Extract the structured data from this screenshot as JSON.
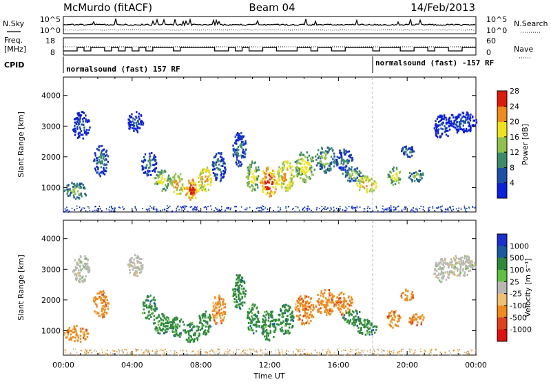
{
  "header": {
    "station": "McMurdo (fitACF)",
    "beam": "Beam 04",
    "date": "14/Feb/2013"
  },
  "summary_panels": {
    "nsky_label": "N.Sky",
    "nsearch_label": "N.Search",
    "noise_ticks": [
      "10^5",
      "10^0"
    ],
    "freq_label": "Freq.",
    "freq_unit": "[MHz]",
    "freq_ticks": [
      "18",
      "8"
    ],
    "nave_label": "Nave",
    "nave_ticks": [
      "60",
      "0"
    ],
    "cpid_label": "CPID",
    "cpid_segments": [
      {
        "text": "normalsound (fast) 157 RF",
        "start_hour": 0
      },
      {
        "text": "normalsound (fast) -157 RF",
        "start_hour": 18
      }
    ]
  },
  "chart_data": [
    {
      "type": "heatmap",
      "name": "power",
      "ylabel": "Slant Range [km]",
      "xlabel": "",
      "xlim": [
        0,
        24
      ],
      "ylim": [
        200,
        4600
      ],
      "yticks": [
        "1000",
        "2000",
        "3000",
        "4000"
      ],
      "colorbar": {
        "label": "Power [dB]",
        "ticks": [
          "4",
          "8",
          "12",
          "16",
          "20",
          "24",
          "28"
        ],
        "colors": [
          "#0a1fe0",
          "#1b4fa8",
          "#3d8a6a",
          "#8fc24a",
          "#f0e21a",
          "#f08a1a",
          "#e01a0a"
        ]
      },
      "regions": [
        {
          "t0": 0.0,
          "t1": 1.4,
          "r0": 650,
          "r1": 1200,
          "level": 3
        },
        {
          "t0": 0.5,
          "t1": 1.5,
          "r0": 2600,
          "r1": 3500,
          "level": 1
        },
        {
          "t0": 1.7,
          "t1": 2.6,
          "r0": 1400,
          "r1": 2400,
          "level": 2
        },
        {
          "t0": 3.7,
          "t1": 4.6,
          "r0": 2800,
          "r1": 3500,
          "level": 1
        },
        {
          "t0": 4.5,
          "t1": 5.4,
          "r0": 1400,
          "r1": 2200,
          "level": 2
        },
        {
          "t0": 5.2,
          "t1": 6.2,
          "r0": 900,
          "r1": 1600,
          "level": 4
        },
        {
          "t0": 6.2,
          "t1": 7.0,
          "r0": 800,
          "r1": 1500,
          "level": 5
        },
        {
          "t0": 7.0,
          "t1": 7.9,
          "r0": 600,
          "r1": 1300,
          "level": 6
        },
        {
          "t0": 7.8,
          "t1": 8.6,
          "r0": 900,
          "r1": 1700,
          "level": 5
        },
        {
          "t0": 8.6,
          "t1": 9.4,
          "r0": 1200,
          "r1": 2200,
          "level": 2
        },
        {
          "t0": 9.8,
          "t1": 10.6,
          "r0": 1700,
          "r1": 2900,
          "level": 2
        },
        {
          "t0": 10.6,
          "t1": 11.4,
          "r0": 900,
          "r1": 1900,
          "level": 4
        },
        {
          "t0": 11.4,
          "t1": 12.4,
          "r0": 700,
          "r1": 1700,
          "level": 6
        },
        {
          "t0": 12.4,
          "t1": 13.4,
          "r0": 900,
          "r1": 1900,
          "level": 5
        },
        {
          "t0": 13.4,
          "t1": 14.6,
          "r0": 1200,
          "r1": 2200,
          "level": 4
        },
        {
          "t0": 14.6,
          "t1": 15.8,
          "r0": 1500,
          "r1": 2400,
          "level": 3
        },
        {
          "t0": 15.8,
          "t1": 16.8,
          "r0": 1500,
          "r1": 2300,
          "level": 2
        },
        {
          "t0": 16.2,
          "t1": 17.4,
          "r0": 1200,
          "r1": 1700,
          "level": 3
        },
        {
          "t0": 17.0,
          "t1": 18.2,
          "r0": 850,
          "r1": 1400,
          "level": 5
        },
        {
          "t0": 18.8,
          "t1": 19.6,
          "r0": 1100,
          "r1": 1700,
          "level": 4
        },
        {
          "t0": 19.6,
          "t1": 20.4,
          "r0": 2000,
          "r1": 2400,
          "level": 2
        },
        {
          "t0": 20.0,
          "t1": 21.0,
          "r0": 1200,
          "r1": 1600,
          "level": 3
        },
        {
          "t0": 21.5,
          "t1": 22.5,
          "r0": 2600,
          "r1": 3400,
          "level": 1
        },
        {
          "t0": 22.3,
          "t1": 24.0,
          "r0": 2800,
          "r1": 3500,
          "level": 1
        }
      ]
    },
    {
      "type": "heatmap",
      "name": "velocity",
      "ylabel": "Slant Range [km]",
      "xlabel": "Time UT",
      "xlim": [
        0,
        24
      ],
      "ylim": [
        200,
        4600
      ],
      "xticks": [
        "00:00",
        "04:00",
        "08:00",
        "12:00",
        "16:00",
        "20:00",
        "00:00"
      ],
      "yticks": [
        "1000",
        "2000",
        "3000",
        "4000"
      ],
      "colorbar": {
        "label": "Velocity [m s⁻¹]",
        "ticks": [
          "1000",
          "500",
          "100",
          "25",
          "-25",
          "-100",
          "-500",
          "-1000"
        ],
        "colors": [
          "#1a2fd0",
          "#1a5aa0",
          "#2e8a3a",
          "#60c040",
          "#b8b8b0",
          "#f0c070",
          "#f08a1a",
          "#e0401a",
          "#e01010"
        ]
      },
      "regions": [
        {
          "t0": 0.0,
          "t1": 1.4,
          "r0": 650,
          "r1": 1200,
          "level": 6
        },
        {
          "t0": 0.5,
          "t1": 1.5,
          "r0": 2600,
          "r1": 3500,
          "level": 4
        },
        {
          "t0": 1.7,
          "t1": 2.6,
          "r0": 1400,
          "r1": 2400,
          "level": 6
        },
        {
          "t0": 3.7,
          "t1": 4.6,
          "r0": 2800,
          "r1": 3500,
          "level": 4
        },
        {
          "t0": 4.5,
          "t1": 5.4,
          "r0": 1400,
          "r1": 2200,
          "level": 2
        },
        {
          "t0": 5.2,
          "t1": 6.2,
          "r0": 900,
          "r1": 1600,
          "level": 2
        },
        {
          "t0": 6.2,
          "t1": 7.0,
          "r0": 800,
          "r1": 1500,
          "level": 2
        },
        {
          "t0": 7.0,
          "t1": 7.9,
          "r0": 600,
          "r1": 1300,
          "level": 2
        },
        {
          "t0": 7.8,
          "t1": 8.6,
          "r0": 900,
          "r1": 1700,
          "level": 2
        },
        {
          "t0": 8.6,
          "t1": 9.4,
          "r0": 1200,
          "r1": 2200,
          "level": 6
        },
        {
          "t0": 9.8,
          "t1": 10.6,
          "r0": 1700,
          "r1": 2900,
          "level": 2
        },
        {
          "t0": 10.6,
          "t1": 11.4,
          "r0": 900,
          "r1": 1900,
          "level": 2
        },
        {
          "t0": 11.4,
          "t1": 12.4,
          "r0": 700,
          "r1": 1700,
          "level": 2
        },
        {
          "t0": 12.4,
          "t1": 13.4,
          "r0": 900,
          "r1": 1900,
          "level": 2
        },
        {
          "t0": 13.4,
          "t1": 14.6,
          "r0": 1200,
          "r1": 2200,
          "level": 6
        },
        {
          "t0": 14.6,
          "t1": 15.8,
          "r0": 1500,
          "r1": 2400,
          "level": 6
        },
        {
          "t0": 15.8,
          "t1": 16.8,
          "r0": 1500,
          "r1": 2300,
          "level": 6
        },
        {
          "t0": 16.2,
          "t1": 17.4,
          "r0": 1200,
          "r1": 1700,
          "level": 2
        },
        {
          "t0": 17.0,
          "t1": 18.2,
          "r0": 850,
          "r1": 1400,
          "level": 2
        },
        {
          "t0": 18.8,
          "t1": 19.6,
          "r0": 1100,
          "r1": 1700,
          "level": 6
        },
        {
          "t0": 19.6,
          "t1": 20.4,
          "r0": 2000,
          "r1": 2400,
          "level": 6
        },
        {
          "t0": 20.0,
          "t1": 21.0,
          "r0": 1200,
          "r1": 1600,
          "level": 6
        },
        {
          "t0": 21.5,
          "t1": 22.5,
          "r0": 2600,
          "r1": 3400,
          "level": 4
        },
        {
          "t0": 22.3,
          "t1": 24.0,
          "r0": 2800,
          "r1": 3500,
          "level": 4
        }
      ]
    }
  ]
}
